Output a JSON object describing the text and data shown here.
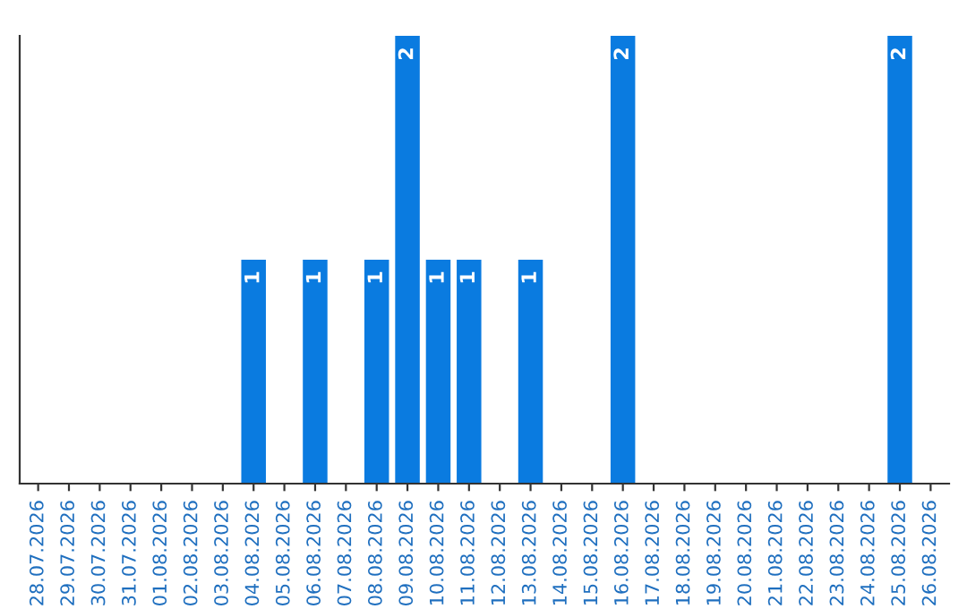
{
  "chart_data": {
    "type": "bar",
    "categories": [
      "28.07.2026",
      "29.07.2026",
      "30.07.2026",
      "31.07.2026",
      "01.08.2026",
      "02.08.2026",
      "03.08.2026",
      "04.08.2026",
      "05.08.2026",
      "06.08.2026",
      "07.08.2026",
      "08.08.2026",
      "09.08.2026",
      "10.08.2026",
      "11.08.2026",
      "12.08.2026",
      "13.08.2026",
      "14.08.2026",
      "15.08.2026",
      "16.08.2026",
      "17.08.2026",
      "18.08.2026",
      "19.08.2026",
      "20.08.2026",
      "21.08.2026",
      "22.08.2026",
      "23.08.2026",
      "24.08.2026",
      "25.08.2026",
      "26.08.2026"
    ],
    "values": [
      0,
      0,
      0,
      0,
      0,
      0,
      0,
      1,
      0,
      1,
      0,
      1,
      2,
      1,
      1,
      0,
      1,
      0,
      0,
      2,
      0,
      0,
      0,
      0,
      0,
      0,
      0,
      0,
      2,
      0
    ],
    "value_labels": [
      null,
      null,
      null,
      null,
      null,
      null,
      null,
      "1",
      null,
      "1",
      null,
      "1",
      "2",
      "1",
      "1",
      null,
      "1",
      null,
      null,
      "2",
      null,
      null,
      null,
      null,
      null,
      null,
      null,
      null,
      "2",
      null
    ],
    "color": "#0a7be0",
    "ylim": [
      0,
      2
    ],
    "tick_labels": "x",
    "grid": false,
    "legend": false
  }
}
